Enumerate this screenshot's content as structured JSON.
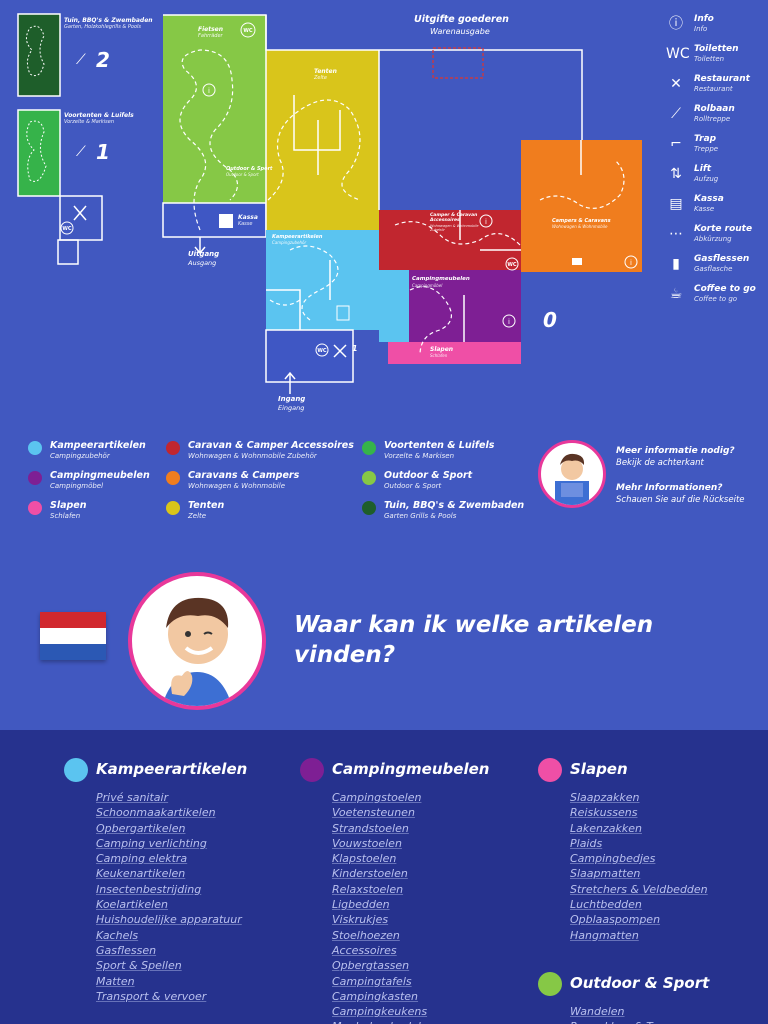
{
  "map": {
    "zones": {
      "tuin_small": {
        "title": "Tuin, BBQ's & Zwembaden",
        "sub": "Garten, Holzkohlegrills & Pools"
      },
      "voortenten_small": {
        "title": "Voortenten & Luifels",
        "sub": "Vorzelte & Markisen"
      },
      "fietsen": {
        "title": "Fietsen",
        "sub": "Fahrräder"
      },
      "tenten": {
        "title": "Tenten",
        "sub": "Zelte"
      },
      "outdoor": {
        "title": "Outdoor & Sport",
        "sub": "Outdoor & Sport"
      },
      "kassa": {
        "title": "Kassa",
        "sub": "Kasse"
      },
      "kampeer": {
        "title": "Kampeerartikelen",
        "sub": "Campingzubehör"
      },
      "camper_acc": {
        "title": "Camper & Caravan Accessoires",
        "sub": "Wohnwagen & Wohnmobile Zubehör"
      },
      "campers": {
        "title": "Campers & Caravans",
        "sub": "Wohnwagen & Wohnmobile"
      },
      "campingmeubelen": {
        "title": "Campingmeubelen",
        "sub": "Campingmöbel"
      },
      "slapen": {
        "title": "Slapen",
        "sub": "Schlafen"
      }
    },
    "floor_2": "2",
    "floor_1": "1",
    "floor_0": "0",
    "level_1_small": "1",
    "uitgifte": {
      "title": "Uitgifte goederen",
      "sub": "Warenausgabe"
    },
    "uitgang": {
      "title": "Uitgang",
      "sub": "Ausgang"
    },
    "ingang": {
      "title": "Ingang",
      "sub": "Eingang"
    },
    "wc": "WC"
  },
  "legend": [
    {
      "icon": "info-icon",
      "glyph": "ⓘ",
      "title": "Info",
      "sub": "Info"
    },
    {
      "icon": "toilet-icon",
      "glyph": "WC",
      "title": "Toiletten",
      "sub": "Toiletten"
    },
    {
      "icon": "restaurant-icon",
      "glyph": "✕",
      "title": "Restaurant",
      "sub": "Restaurant"
    },
    {
      "icon": "escalator-icon",
      "glyph": "⟋",
      "title": "Rolbaan",
      "sub": "Rolltreppe"
    },
    {
      "icon": "stairs-icon",
      "glyph": "⌐",
      "title": "Trap",
      "sub": "Treppe"
    },
    {
      "icon": "lift-icon",
      "glyph": "⇅",
      "title": "Lift",
      "sub": "Aufzug"
    },
    {
      "icon": "register-icon",
      "glyph": "▤",
      "title": "Kassa",
      "sub": "Kasse"
    },
    {
      "icon": "short-route-icon",
      "glyph": "⋯",
      "title": "Korte route",
      "sub": "Abkürzung"
    },
    {
      "icon": "gas-bottle-icon",
      "glyph": "▮",
      "title": "Gasflessen",
      "sub": "Gasflasche"
    },
    {
      "icon": "coffee-icon",
      "glyph": "☕",
      "title": "Coffee to go",
      "sub": "Coffee to go"
    }
  ],
  "colors": {
    "kampeer": "#5bc4f0",
    "campingmeubelen": "#7e1f94",
    "slapen": "#ef4fa6",
    "camper_acc": "#c1262f",
    "campers": "#f07d1e",
    "tenten": "#d9c51b",
    "voortenten": "#36b34a",
    "outdoor": "#86c846",
    "tuin": "#1e5e2a"
  },
  "categories": [
    {
      "name": "Kampeerartikelen",
      "sub": "Campingzubehör",
      "color": "#5bc4f0"
    },
    {
      "name": "Campingmeubelen",
      "sub": "Campingmöbel",
      "color": "#7e1f94"
    },
    {
      "name": "Slapen",
      "sub": "Schlafen",
      "color": "#ef4fa6"
    },
    {
      "name": "Caravan & Camper Accessoires",
      "sub": "Wohnwagen & Wohnmobile Zubehör",
      "color": "#c1262f"
    },
    {
      "name": "Caravans & Campers",
      "sub": "Wohnwagen & Wohnmobile",
      "color": "#f07d1e"
    },
    {
      "name": "Tenten",
      "sub": "Zelte",
      "color": "#d9c51b"
    },
    {
      "name": "Voortenten & Luifels",
      "sub": "Vorzelte & Markisen",
      "color": "#36b34a"
    },
    {
      "name": "Outdoor & Sport",
      "sub": "Outdoor & Sport",
      "color": "#86c846"
    },
    {
      "name": "Tuin, BBQ's & Zwembaden",
      "sub": "Garten  Grills & Pools",
      "color": "#1e5e2a"
    }
  ],
  "info_box": {
    "q_nl": "Meer informatie nodig?",
    "a_nl": "Bekijk de achterkant",
    "q_de": "Mehr Informationen?",
    "a_de": "Schauen Sie auf die Rückseite"
  },
  "headline": "Waar kan ik welke artikelen vinden?",
  "lists": {
    "kampeer": {
      "title": "Kampeerartikelen",
      "items": [
        "Privé sanitair",
        "Schoonmaakartikelen",
        "Opbergartikelen",
        "Camping verlichting",
        "Camping elektra",
        "Keukenartikelen",
        "Insectenbestrijding",
        "Koelartikelen",
        "Huishoudelijke apparatuur",
        "Kachels",
        "Gasflessen",
        "Sport & Spellen",
        "Matten",
        "Transport & vervoer"
      ]
    },
    "meubelen": {
      "title": "Campingmeubelen",
      "items": [
        "Campingstoelen",
        "Voetensteunen",
        "Strandstoelen",
        "Vouwstoelen",
        "Klapstoelen",
        "Kinderstoelen",
        "Relaxstoelen",
        "Ligbedden",
        "Viskrukjes",
        "Stoelhoezen",
        "Accessoires",
        "Opbergtassen",
        "Campingtafels",
        "Campingkasten",
        "Campingkeukens",
        "Meubelonderdelen"
      ]
    },
    "slapen": {
      "title": "Slapen",
      "items": [
        "Slaapzakken",
        "Reiskussens",
        "Lakenzakken",
        "Plaids",
        "Campingbedjes",
        "Slaapmatten",
        "Stretchers & Veldbedden",
        "Luchtbedden",
        "Opblaaspompen",
        "Hangmatten"
      ]
    },
    "outdoor": {
      "title": "Outdoor & Sport",
      "items": [
        "Wandelen",
        "Rugzakken & Tassen"
      ]
    }
  }
}
